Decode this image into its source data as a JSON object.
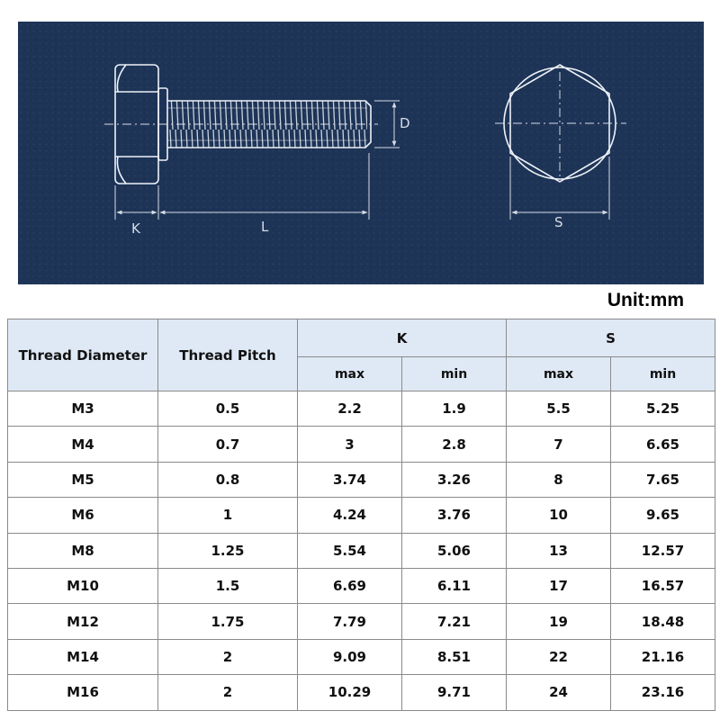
{
  "unit_label": "Unit:mm",
  "drawing": {
    "labels": {
      "k": "K",
      "l": "L",
      "d": "D",
      "s": "S"
    }
  },
  "table": {
    "headers": {
      "thread_diameter": "Thread Diameter",
      "thread_pitch": "Thread Pitch",
      "k": "K",
      "s": "S",
      "k_max": "max",
      "k_min": "min",
      "s_max": "max",
      "s_min": "min"
    },
    "rows": [
      [
        "M3",
        "0.5",
        "2.2",
        "1.9",
        "5.5",
        "5.25"
      ],
      [
        "M4",
        "0.7",
        "3",
        "2.8",
        "7",
        "6.65"
      ],
      [
        "M5",
        "0.8",
        "3.74",
        "3.26",
        "8",
        "7.65"
      ],
      [
        "M6",
        "1",
        "4.24",
        "3.76",
        "10",
        "9.65"
      ],
      [
        "M8",
        "1.25",
        "5.54",
        "5.06",
        "13",
        "12.57"
      ],
      [
        "M10",
        "1.5",
        "6.69",
        "6.11",
        "17",
        "16.57"
      ],
      [
        "M12",
        "1.75",
        "7.79",
        "7.21",
        "19",
        "18.48"
      ],
      [
        "M14",
        "2",
        "9.09",
        "8.51",
        "22",
        "21.16"
      ],
      [
        "M16",
        "2",
        "10.29",
        "9.71",
        "24",
        "23.16"
      ]
    ]
  }
}
